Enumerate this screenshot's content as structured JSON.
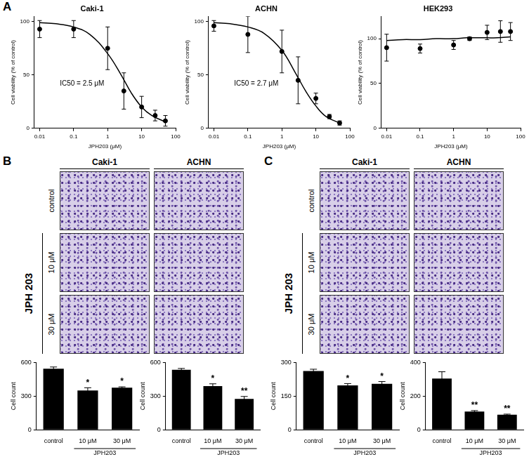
{
  "panel_labels": [
    "A",
    "B",
    "C"
  ],
  "image_panels": [
    {
      "columns": [
        "Caki-1",
        "ACHN"
      ],
      "rows": [
        "control",
        "10 μM",
        "30 μM"
      ],
      "row_group": {
        "label": "JPH 203",
        "rows": [
          "10 μM",
          "30 μM"
        ]
      }
    },
    {
      "columns": [
        "Caki-1",
        "ACHN"
      ],
      "rows": [
        "control",
        "10 μM",
        "30 μM"
      ],
      "row_group": {
        "label": "JPH 203",
        "rows": [
          "10 μM",
          "30 μM"
        ]
      }
    }
  ],
  "chart_data": [
    {
      "type": "scatter",
      "title": "Caki-1",
      "xlabel": "JPH203 (μM)",
      "ylabel": "Cell viability (% of control)",
      "log": "x",
      "grid": false,
      "color": "#000000",
      "marker": "circle",
      "x": [
        0.01,
        0.1,
        1,
        3,
        10,
        25,
        50
      ],
      "values": [
        93,
        93,
        75,
        35,
        20,
        12,
        7
      ],
      "errors": [
        8,
        8,
        20,
        17,
        10,
        5,
        5
      ],
      "fit_x": [
        0.01,
        0.03,
        0.1,
        0.3,
        1,
        2.5,
        5,
        10,
        20,
        50
      ],
      "fit_values": [
        99,
        98,
        95,
        88,
        70,
        50,
        33,
        20,
        12,
        6
      ],
      "annotation": "IC50 = 2.5 μM",
      "xlim": [
        0.007,
        100
      ],
      "xticks": [
        0.01,
        0.1,
        1,
        10,
        100
      ],
      "ylim": [
        0,
        105
      ],
      "yticks": [
        0,
        50,
        100
      ]
    },
    {
      "type": "scatter",
      "title": "ACHN",
      "xlabel": "JPH203 (μM)",
      "ylabel": "Cell viability (% of control)",
      "log": "x",
      "grid": false,
      "color": "#000000",
      "marker": "circle",
      "x": [
        0.01,
        0.1,
        1,
        3,
        10,
        25,
        50
      ],
      "values": [
        96,
        88,
        72,
        45,
        28,
        11,
        5
      ],
      "errors": [
        5,
        17,
        20,
        22,
        5,
        2,
        2
      ],
      "fit_x": [
        0.01,
        0.03,
        0.1,
        0.3,
        1,
        2.5,
        5,
        10,
        20,
        50
      ],
      "fit_values": [
        99,
        98,
        95,
        89,
        73,
        52,
        35,
        21,
        11,
        5
      ],
      "annotation": "IC50 = 2.7 μM",
      "xlim": [
        0.007,
        100
      ],
      "xticks": [
        0.01,
        0.1,
        1,
        10,
        100
      ],
      "ylim": [
        0,
        105
      ],
      "yticks": [
        0,
        50,
        100
      ]
    },
    {
      "type": "scatter",
      "title": "HEK293",
      "xlabel": "JPH203 (μM)",
      "ylabel": "Cell viability (% of control)",
      "log": "x",
      "grid": false,
      "color": "#000000",
      "marker": "circle",
      "x": [
        0.01,
        0.1,
        1,
        3,
        10,
        25,
        50
      ],
      "values": [
        90,
        89,
        93,
        100,
        107,
        108,
        108
      ],
      "errors": [
        15,
        5,
        5,
        2,
        8,
        12,
        10
      ],
      "fit_x": [
        0.01,
        0.03,
        0.1,
        0.3,
        1,
        2.5,
        5,
        10,
        20,
        50
      ],
      "fit_values": [
        98,
        99,
        99,
        100,
        100,
        101,
        101,
        101,
        101,
        102
      ],
      "xlim": [
        0.007,
        100
      ],
      "xticks": [
        0.01,
        0.1,
        1,
        10,
        100
      ],
      "ylim": [
        0,
        125
      ],
      "yticks": [
        0,
        50,
        100
      ]
    },
    {
      "type": "bar",
      "ylabel": "Cell count",
      "grid": false,
      "color": "#000000",
      "categories": [
        "control",
        "10 μM",
        "30 μM"
      ],
      "values": [
        545,
        350,
        375
      ],
      "errors": [
        15,
        25,
        8
      ],
      "annotations": [
        null,
        "*",
        "*"
      ],
      "x_group": {
        "label": "JPH203",
        "categories": [
          "10 μM",
          "30 μM"
        ]
      },
      "ylim": [
        0,
        600
      ],
      "yticks": [
        0,
        300,
        600
      ]
    },
    {
      "type": "bar",
      "ylabel": "Cell count",
      "grid": false,
      "color": "#000000",
      "categories": [
        "control",
        "10 μM",
        "30 μM"
      ],
      "values": [
        535,
        390,
        275
      ],
      "errors": [
        12,
        20,
        22
      ],
      "annotations": [
        null,
        "*",
        "**"
      ],
      "x_group": {
        "label": "JPH203",
        "categories": [
          "10 μM",
          "30 μM"
        ]
      },
      "ylim": [
        0,
        600
      ],
      "yticks": [
        0,
        300,
        600
      ]
    },
    {
      "type": "bar",
      "ylabel": "Cell count",
      "grid": false,
      "color": "#000000",
      "categories": [
        "control",
        "10 μM",
        "30 μM"
      ],
      "values": [
        262,
        198,
        205
      ],
      "errors": [
        8,
        8,
        10
      ],
      "annotations": [
        null,
        "*",
        "*"
      ],
      "x_group": {
        "label": "JPH203",
        "categories": [
          "10 μM",
          "30 μM"
        ]
      },
      "ylim": [
        0,
        300
      ],
      "yticks": [
        0,
        150,
        300
      ]
    },
    {
      "type": "bar",
      "ylabel": "Cell count",
      "grid": false,
      "color": "#000000",
      "categories": [
        "control",
        "10 μM",
        "30 μM"
      ],
      "values": [
        305,
        108,
        90
      ],
      "errors": [
        40,
        6,
        3
      ],
      "annotations": [
        null,
        "**",
        "**"
      ],
      "x_group": {
        "label": "JPH203",
        "categories": [
          "10 μM",
          "30 μM"
        ]
      },
      "ylim": [
        0,
        400
      ],
      "yticks": [
        0,
        200,
        400
      ]
    }
  ]
}
